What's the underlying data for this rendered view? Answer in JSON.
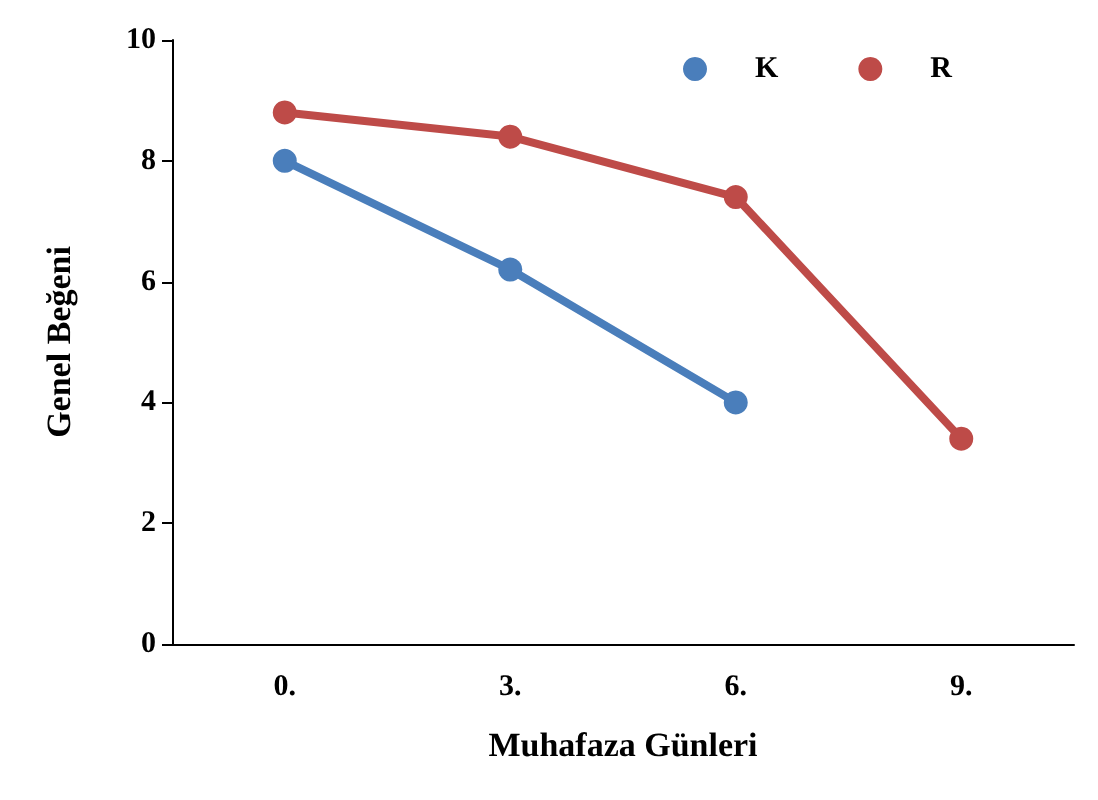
{
  "chart_data": {
    "type": "line",
    "xlabel": "Muhafaza Günleri",
    "ylabel": "Genel Beğeni",
    "categories": [
      "0.",
      "3.",
      "6.",
      "9."
    ],
    "series": [
      {
        "name": "K",
        "color": "#4a7ebb",
        "values": [
          8,
          6.2,
          4,
          null
        ]
      },
      {
        "name": "R",
        "color": "#be4b48",
        "values": [
          8.8,
          8.4,
          7.4,
          3.4
        ]
      }
    ],
    "ylim": [
      0,
      10
    ],
    "yticks": [
      0,
      2,
      4,
      6,
      8,
      10
    ],
    "grid": false,
    "legend": "top right",
    "marker": "circle",
    "line_style": "solid"
  }
}
